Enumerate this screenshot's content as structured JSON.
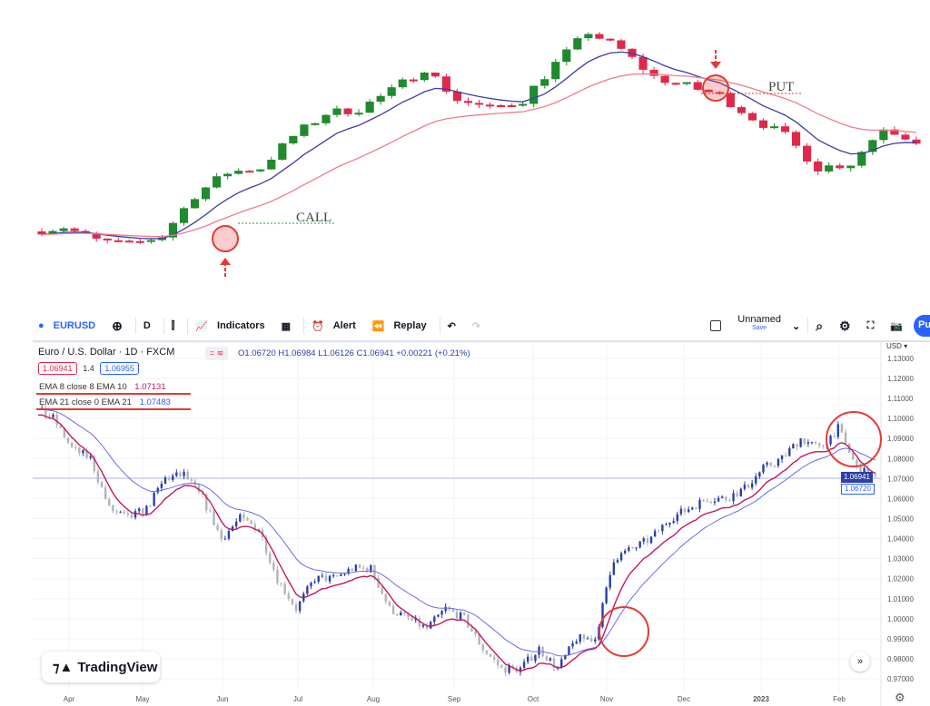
{
  "top_chart": {
    "annotations": {
      "call": "CALL",
      "put": "PUT"
    },
    "colors": {
      "up": "#1f8a2e",
      "down": "#e0284a",
      "fast_ema": "#3b3ba6",
      "slow_ema": "#ef7c8a",
      "marker": "#e53935"
    },
    "levels": [
      45,
      50,
      35,
      30,
      40,
      85,
      110,
      115,
      150,
      175,
      180,
      200,
      225,
      190,
      180,
      190,
      230,
      265,
      245,
      215,
      205,
      195,
      170,
      150,
      115,
      120,
      160,
      145
    ]
  },
  "toolbar": {
    "symbol": "EURUSD",
    "interval": "D",
    "indicators": "Indicators",
    "alert": "Alert",
    "replay": "Replay",
    "layout_name": "Unnamed",
    "save": "Save",
    "publish": "Pu"
  },
  "legend": {
    "title": "Euro / U.S. Dollar · 1D · FXCM",
    "ohlc": "O1.06720 H1.06984 L1.06126 C1.06941 +0.00221 (+0.21%)",
    "bid": "1.06941",
    "spread": "1.4",
    "ask": "1.06955",
    "ema1_label": "EMA 8 close 8 EMA 10",
    "ema1_value": "1.07131",
    "ema2_label": "EMA 21 close 0 EMA 21",
    "ema2_value": "1.07483"
  },
  "chart_data": {
    "type": "candlestick",
    "currency": "USD",
    "ylim": [
      0.965,
      1.135
    ],
    "y_ticks": [
      "1.13000",
      "1.12000",
      "1.11000",
      "1.10000",
      "1.09000",
      "1.08000",
      "1.07000",
      "1.06000",
      "1.05000",
      "1.04000",
      "1.03000",
      "1.02000",
      "1.01000",
      "1.00000",
      "0.99000",
      "0.98000",
      "0.97000"
    ],
    "x_ticks": [
      "Apr",
      "May",
      "Jun",
      "Jul",
      "Aug",
      "Sep",
      "Oct",
      "Nov",
      "Dec",
      "2023",
      "Feb"
    ],
    "weekly_closes": [
      1.105,
      1.1,
      1.085,
      1.08,
      1.055,
      1.05,
      1.055,
      1.07,
      1.072,
      1.06,
      1.04,
      1.05,
      1.045,
      1.02,
      1.005,
      1.02,
      1.02,
      1.025,
      1.025,
      1.005,
      1.0,
      0.995,
      1.005,
      1.0,
      0.985,
      0.975,
      0.975,
      0.985,
      0.975,
      0.99,
      0.99,
      1.03,
      1.035,
      1.04,
      1.05,
      1.055,
      1.06,
      1.06,
      1.065,
      1.075,
      1.08,
      1.09,
      1.085,
      1.095,
      1.075,
      1.07
    ],
    "last_price": "1.06941",
    "open_price": "1.06720",
    "series": [
      {
        "name": "EMA 8",
        "color": "#c2185b"
      },
      {
        "name": "EMA 21",
        "color": "#6a6af0"
      }
    ],
    "colors": {
      "up": "#2a3fa8",
      "down": "#b4b4b4"
    }
  },
  "watermark": "TradingView"
}
